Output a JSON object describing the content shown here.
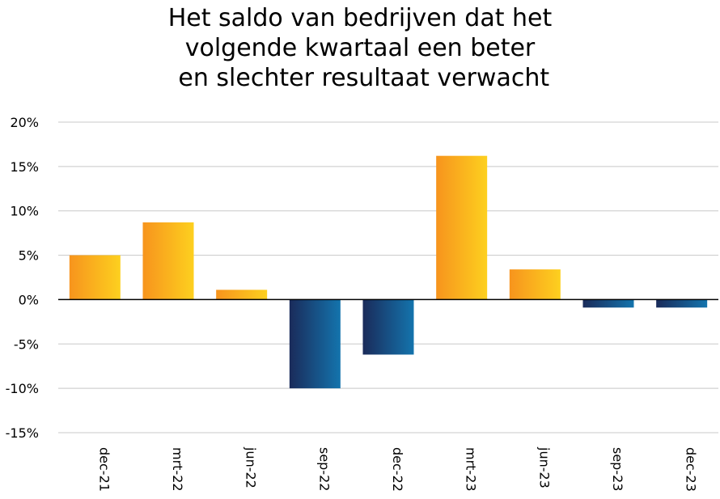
{
  "chart_data": {
    "type": "bar",
    "title_lines": [
      "Het saldo van bedrijven dat het",
      "volgende kwartaal een beter",
      " en slechter resultaat verwacht"
    ],
    "categories": [
      "dec-21",
      "mrt-22",
      "jun-22",
      "sep-22",
      "dec-22",
      "mrt-23",
      "jun-23",
      "sep-23",
      "dec-23"
    ],
    "values": [
      5.0,
      8.7,
      1.1,
      -10.0,
      -6.2,
      16.2,
      3.4,
      -0.9,
      -0.9
    ],
    "ylim": [
      -15,
      20
    ],
    "yticks": [
      20,
      15,
      10,
      5,
      0,
      -5,
      -10,
      -15
    ],
    "ytick_labels": [
      "20%",
      "15%",
      "10%",
      "5%",
      "0%",
      "-5%",
      "-10%",
      "-15%"
    ],
    "grid": true,
    "colors": {
      "positive_start": "#f7941d",
      "positive_end": "#fdd01f",
      "negative_start": "#1a2b5a",
      "negative_end": "#1474ad",
      "grid": "#c8c8c8",
      "zero_line": "#000000"
    }
  }
}
